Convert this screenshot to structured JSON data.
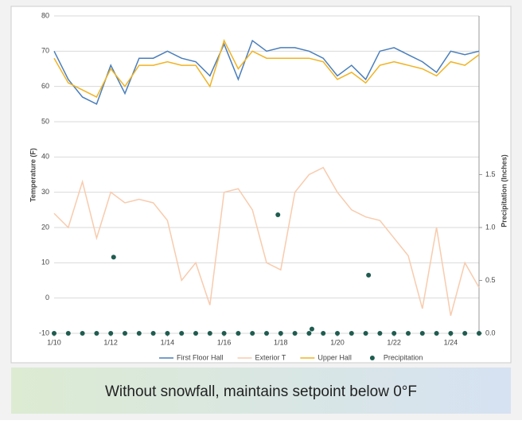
{
  "chart_data": {
    "type": "line",
    "caption": "Without snowfall, maintains setpoint below 0°F",
    "y_label": "Temperature (F)",
    "y2_label": "Precipitation (Inches)",
    "x": [
      10,
      10.5,
      11,
      11.5,
      12,
      12.5,
      13,
      13.5,
      14,
      14.5,
      15,
      15.5,
      16,
      16.5,
      17,
      17.5,
      18,
      18.5,
      19,
      19.5,
      20,
      20.5,
      21,
      21.5,
      22,
      22.5,
      23,
      23.5,
      24,
      24.5,
      25
    ],
    "xlim": [
      10,
      25
    ],
    "xticks": [
      {
        "value": 10,
        "label": "1/10"
      },
      {
        "value": 12,
        "label": "1/12"
      },
      {
        "value": 14,
        "label": "1/14"
      },
      {
        "value": 16,
        "label": "1/16"
      },
      {
        "value": 18,
        "label": "1/18"
      },
      {
        "value": 20,
        "label": "1/20"
      },
      {
        "value": 22,
        "label": "1/22"
      },
      {
        "value": 24,
        "label": "1/24"
      }
    ],
    "ylim": [
      -10,
      80
    ],
    "yticks": [
      -10,
      0,
      10,
      20,
      30,
      40,
      50,
      60,
      70,
      80
    ],
    "y2lim": [
      0,
      3
    ],
    "y2ticks": [
      {
        "value": 0,
        "label": "0.0"
      },
      0.5,
      {
        "value": 1,
        "label": "1.0"
      },
      1.5
    ],
    "grid": true,
    "series": [
      {
        "name": "First Floor Hall",
        "color": "#4a7ebb",
        "values": [
          70,
          62,
          57,
          55,
          66,
          58,
          68,
          68,
          70,
          68,
          67,
          63,
          72,
          62,
          73,
          70,
          71,
          71,
          70,
          68,
          63,
          66,
          62,
          70,
          71,
          69,
          67,
          64,
          70,
          69,
          70
        ]
      },
      {
        "name": "Exterior T",
        "color": "#f8cbad",
        "values": [
          24,
          20,
          33,
          17,
          30,
          27,
          28,
          27,
          22,
          5,
          10,
          -2,
          30,
          31,
          25,
          10,
          8,
          30,
          35,
          37,
          30,
          25,
          23,
          22,
          17,
          12,
          -3,
          20,
          -5,
          10,
          3
        ]
      },
      {
        "name": "Upper Hall",
        "color": "#f0b323",
        "values": [
          68,
          61,
          59,
          57,
          65,
          60,
          66,
          66,
          67,
          66,
          66,
          60,
          73,
          65,
          70,
          68,
          68,
          68,
          68,
          67,
          62,
          64,
          61,
          66,
          67,
          66,
          65,
          63,
          67,
          66,
          69
        ]
      },
      {
        "name": "Precipitation",
        "color": "#1f5c4f",
        "type": "scatter",
        "axis": "y2",
        "x": [
          10,
          10.5,
          11,
          11.5,
          12,
          12.1,
          12.5,
          13,
          13.5,
          14,
          14.5,
          15,
          15.5,
          16,
          16.5,
          17,
          17.5,
          17.9,
          18,
          18.5,
          19,
          19.1,
          19.5,
          20,
          20.5,
          21,
          21.1,
          21.5,
          22,
          22.5,
          23,
          23.5,
          24,
          24.5,
          25
        ],
        "values": [
          0,
          0,
          0,
          0,
          0,
          0.72,
          0,
          0,
          0,
          0,
          0,
          0,
          0,
          0,
          0,
          0,
          0,
          1.12,
          0,
          0,
          0,
          0.04,
          0,
          0,
          0,
          0,
          0.55,
          0,
          0,
          0,
          0,
          0,
          0,
          0,
          0
        ]
      }
    ]
  }
}
